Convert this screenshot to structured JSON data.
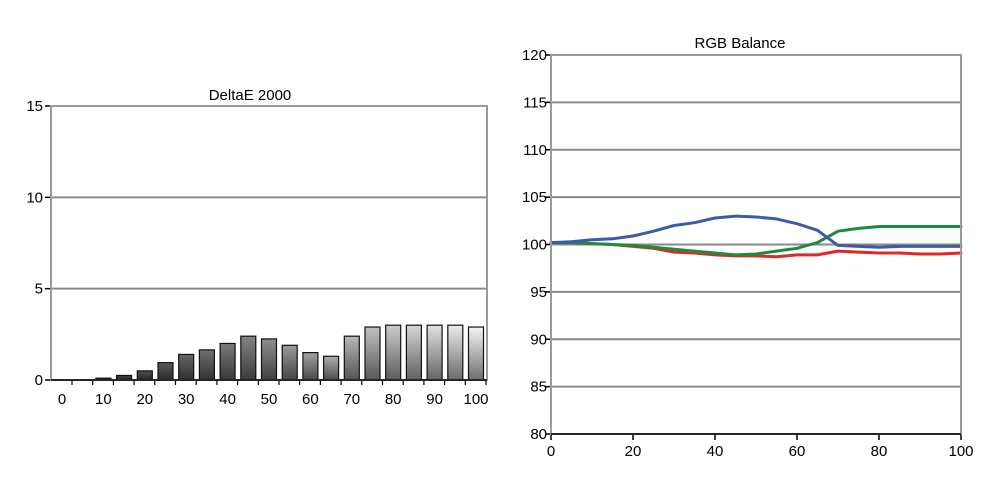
{
  "chart_data": [
    {
      "type": "bar",
      "title": "DeltaE 2000",
      "xlabel": "",
      "ylabel": "",
      "ylim": [
        0,
        15
      ],
      "yticks": [
        "0",
        "5",
        "10",
        "15"
      ],
      "xticks": [
        "0",
        "10",
        "20",
        "30",
        "40",
        "50",
        "60",
        "70",
        "80",
        "90",
        "100"
      ],
      "grid": true,
      "categories": [
        "0",
        "5",
        "10",
        "15",
        "20",
        "25",
        "30",
        "35",
        "40",
        "45",
        "50",
        "55",
        "60",
        "65",
        "70",
        "75",
        "80",
        "85",
        "90",
        "95",
        "100"
      ],
      "values": [
        0,
        0,
        0.1,
        0.25,
        0.5,
        0.95,
        1.4,
        1.65,
        2.0,
        2.4,
        2.25,
        1.9,
        1.5,
        1.3,
        2.4,
        2.9,
        3.0,
        3.0,
        3.0,
        3.0,
        2.9
      ]
    },
    {
      "type": "line",
      "title": "RGB Balance",
      "xlabel": "",
      "ylabel": "",
      "xlim": [
        0,
        100
      ],
      "ylim": [
        80,
        120
      ],
      "xticks": [
        "0",
        "20",
        "40",
        "60",
        "80",
        "100"
      ],
      "yticks": [
        "80",
        "85",
        "90",
        "95",
        "100",
        "105",
        "110",
        "115",
        "120"
      ],
      "grid": true,
      "series": [
        {
          "color": "#e02828",
          "x": [
            0,
            5,
            10,
            15,
            20,
            25,
            30,
            35,
            40,
            45,
            50,
            55,
            60,
            65,
            70,
            75,
            80,
            85,
            90,
            95,
            100
          ],
          "y": [
            100.2,
            100.2,
            100.1,
            100.0,
            99.8,
            99.6,
            99.2,
            99.1,
            98.9,
            98.8,
            98.8,
            98.7,
            98.9,
            98.9,
            99.3,
            99.2,
            99.1,
            99.1,
            99.0,
            99.0,
            99.1
          ]
        },
        {
          "color": "#1e8a3c",
          "x": [
            0,
            5,
            10,
            15,
            20,
            25,
            30,
            35,
            40,
            45,
            50,
            55,
            60,
            65,
            70,
            75,
            80,
            85,
            90,
            95,
            100
          ],
          "y": [
            100.2,
            100.2,
            100.1,
            100.0,
            99.9,
            99.7,
            99.5,
            99.3,
            99.1,
            98.9,
            99.0,
            99.3,
            99.6,
            100.2,
            101.4,
            101.7,
            101.9,
            101.9,
            101.9,
            101.9,
            101.9
          ]
        },
        {
          "color": "#3c5aa8",
          "x": [
            0,
            5,
            10,
            15,
            20,
            25,
            30,
            35,
            40,
            45,
            50,
            55,
            60,
            65,
            70,
            75,
            80,
            85,
            90,
            95,
            100
          ],
          "y": [
            100.2,
            100.3,
            100.5,
            100.6,
            100.9,
            101.4,
            102.0,
            102.3,
            102.8,
            103.0,
            102.9,
            102.7,
            102.2,
            101.5,
            99.9,
            99.8,
            99.7,
            99.8,
            99.8,
            99.8,
            99.8
          ]
        }
      ]
    }
  ]
}
